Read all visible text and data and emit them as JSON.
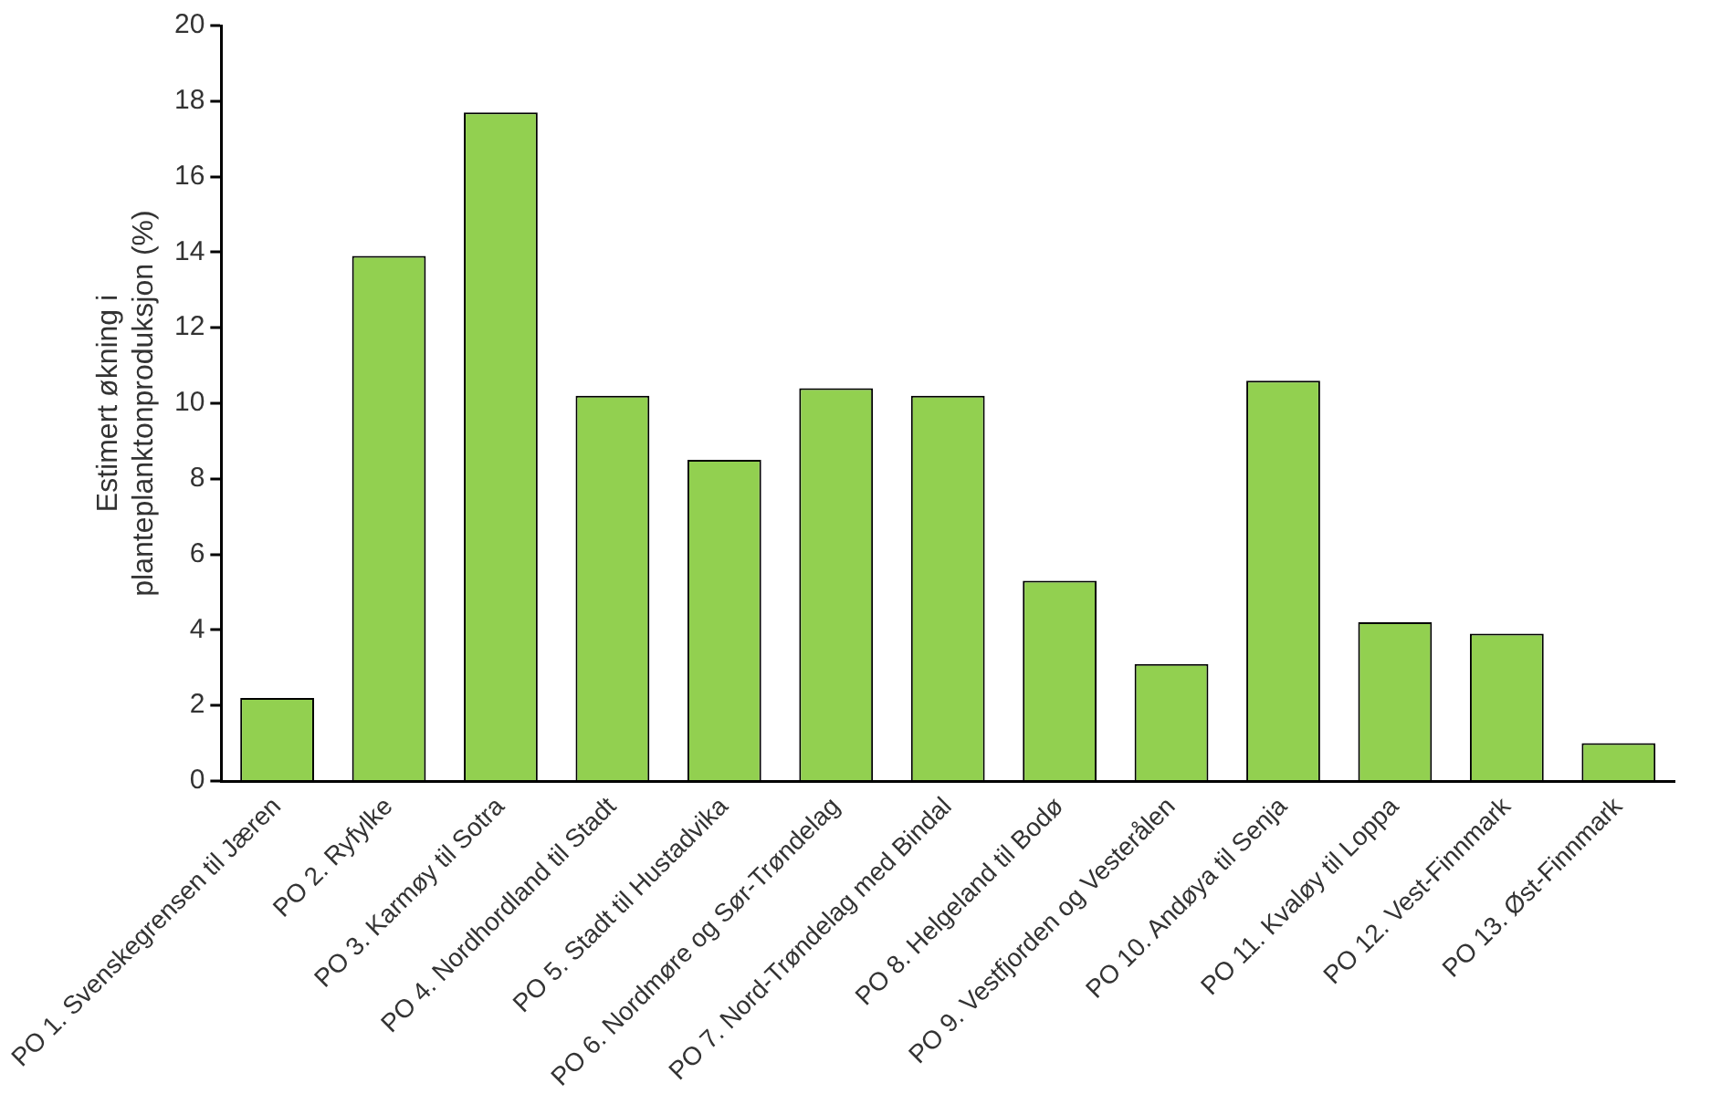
{
  "chart_data": {
    "type": "bar",
    "ylabel": "Estimert økning i\nplanteplanktonproduksjon (%)",
    "categories": [
      "PO 1. Svenskegrensen til Jæren",
      "PO 2. Ryfylke",
      "PO 3. Karmøy til Sotra",
      "PO 4. Nordhordland til Stadt",
      "PO 5. Stadt til Hustadvika",
      "PO 6. Nordmøre og Sør-Trøndelag",
      "PO 7. Nord-Trøndelag med Bindal",
      "PO 8. Helgeland til Bodø",
      "PO 9. Vestfjorden og Vesterålen",
      "PO 10. Andøya til Senja",
      "PO 11. Kvaløy til Loppa",
      "PO 12. Vest-Finnmark",
      "PO 13. Øst-Finnmark"
    ],
    "values": [
      2.2,
      13.9,
      17.7,
      10.2,
      8.5,
      10.4,
      10.2,
      5.3,
      3.1,
      10.6,
      4.2,
      3.9,
      1.0
    ],
    "color": "#92d050",
    "ylim": [
      0,
      20
    ],
    "yticks": [
      0,
      2,
      4,
      6,
      8,
      10,
      12,
      14,
      16,
      18,
      20
    ],
    "grid": false,
    "legend": false
  }
}
